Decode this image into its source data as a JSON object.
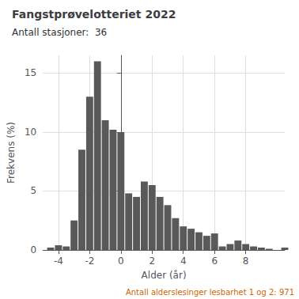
{
  "chart_data": {
    "type": "bar",
    "title": "Fangstprøvelotteriet 2022",
    "subtitle": "Antall stasjoner:  36",
    "xlabel": "Alder (år)",
    "ylabel": "Frekvens (%)",
    "annotations": [
      "Antall alderslesinger lesbarhet 1 og 2: 971"
    ],
    "x": [
      -4.5,
      -4.0,
      -3.5,
      -3.0,
      -2.5,
      -2.0,
      -1.5,
      -1.0,
      -0.5,
      0.0,
      0.5,
      1.0,
      1.5,
      2.0,
      2.5,
      3.0,
      3.5,
      4.0,
      4.5,
      5.0,
      5.5,
      6.0,
      6.5,
      7.0,
      7.5,
      8.0,
      8.5,
      9.0,
      9.5,
      10.0,
      10.5
    ],
    "values": [
      0.2,
      0.4,
      0.3,
      2.5,
      8.5,
      13.0,
      16.0,
      11.0,
      10.2,
      10.0,
      4.8,
      4.5,
      5.8,
      5.5,
      4.5,
      3.8,
      2.7,
      2.0,
      1.8,
      1.5,
      1.2,
      1.4,
      0.3,
      0.5,
      0.8,
      0.5,
      0.3,
      0.2,
      0.1,
      0.0,
      0.2
    ],
    "color": "#595959",
    "xlim": [
      -5.0,
      10.5
    ],
    "xticks": [
      -4,
      -2,
      0,
      2,
      4,
      6,
      8
    ],
    "ylim": [
      0,
      16.5
    ],
    "yticks": [
      0,
      5,
      10,
      15
    ],
    "grid": true
  }
}
